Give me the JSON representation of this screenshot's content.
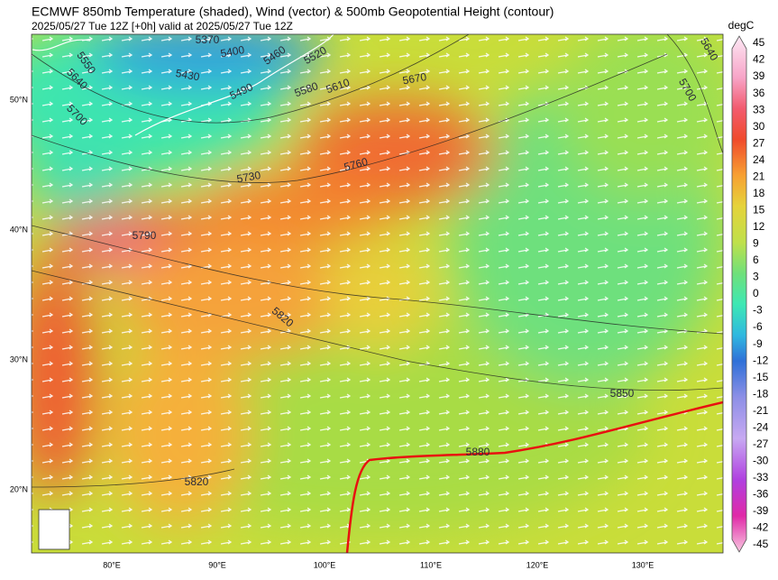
{
  "header": {
    "title": "ECMWF 850mb Temperature (shaded), Wind (vector) & 500mb Geopotential Height (contour)",
    "subtitle": "2025/05/27 Tue 12Z [+0h] valid at 2025/05/27 Tue 12Z"
  },
  "contour_labels": [
    5370,
    5400,
    5460,
    5520,
    5550,
    5640,
    5430,
    5490,
    5580,
    5610,
    5670,
    5700,
    5730,
    5760,
    5790,
    5820,
    5850,
    5880,
    5820,
    5700,
    5640
  ],
  "latitude_labels": [
    "50°N",
    "40°N",
    "30°N",
    "20°N"
  ],
  "longitude_labels": [
    "80°E",
    "90°E",
    "100°E",
    "110°E",
    "120°E",
    "130°E"
  ],
  "colorbar": {
    "unit": "degC",
    "ticks": [
      45,
      42,
      39,
      36,
      33,
      30,
      27,
      24,
      21,
      18,
      15,
      12,
      9,
      6,
      3,
      0,
      -3,
      -6,
      -9,
      -12,
      -15,
      -18,
      -21,
      -24,
      -27,
      -30,
      -33,
      -36,
      -39,
      -42,
      -45
    ]
  }
}
